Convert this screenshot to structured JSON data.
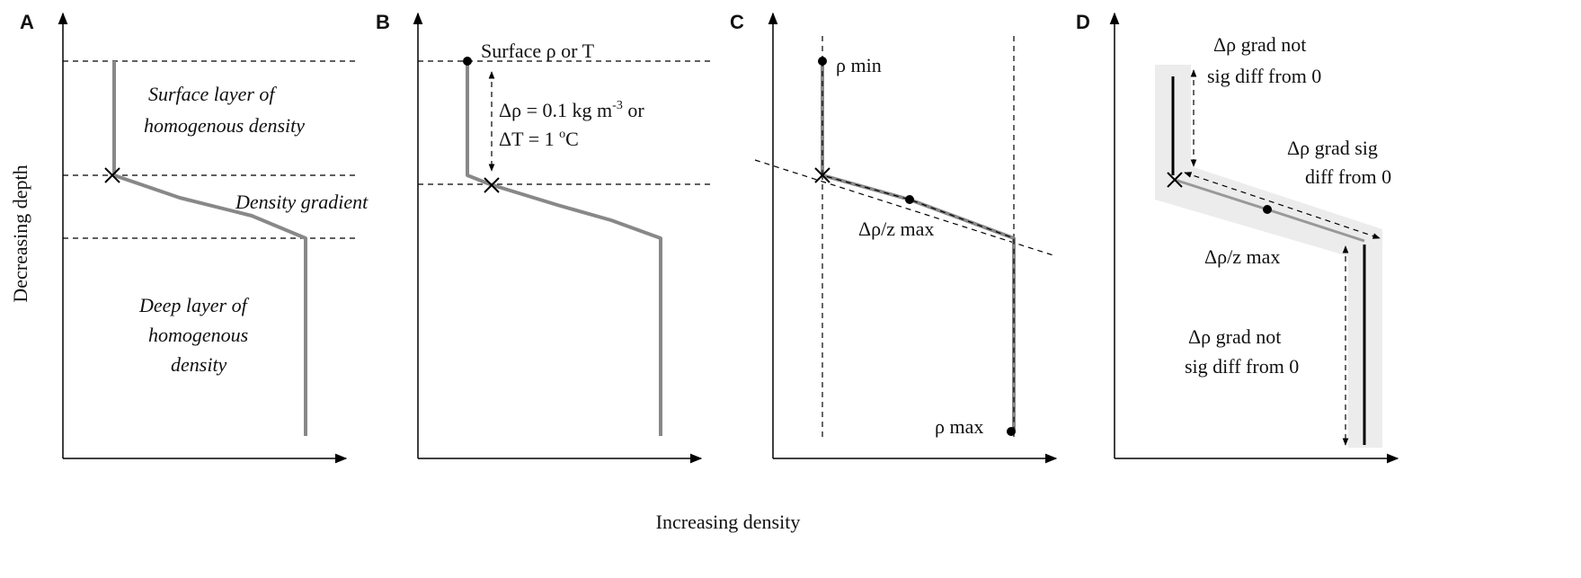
{
  "axes": {
    "y_label": "Decreasing depth",
    "x_label": "Increasing density"
  },
  "panels": [
    {
      "label": "A",
      "annotations": [
        "Surface layer of",
        "homogenous density",
        "Density gradient",
        "Deep layer of",
        "homogenous",
        "density"
      ]
    },
    {
      "label": "B",
      "annotations": [
        "Surface ρ or T",
        "Δρ = 0.1 kg m",
        "-3",
        " or",
        "ΔT = 1 ",
        "o",
        "C"
      ]
    },
    {
      "label": "C",
      "annotations": [
        "ρ min",
        "Δρ/z max",
        "ρ max"
      ]
    },
    {
      "label": "D",
      "annotations": [
        "Δρ grad not",
        "sig diff from 0",
        "Δρ grad sig",
        "diff from 0",
        "Δρ/z max",
        "Δρ grad not",
        "sig diff from 0"
      ]
    }
  ]
}
